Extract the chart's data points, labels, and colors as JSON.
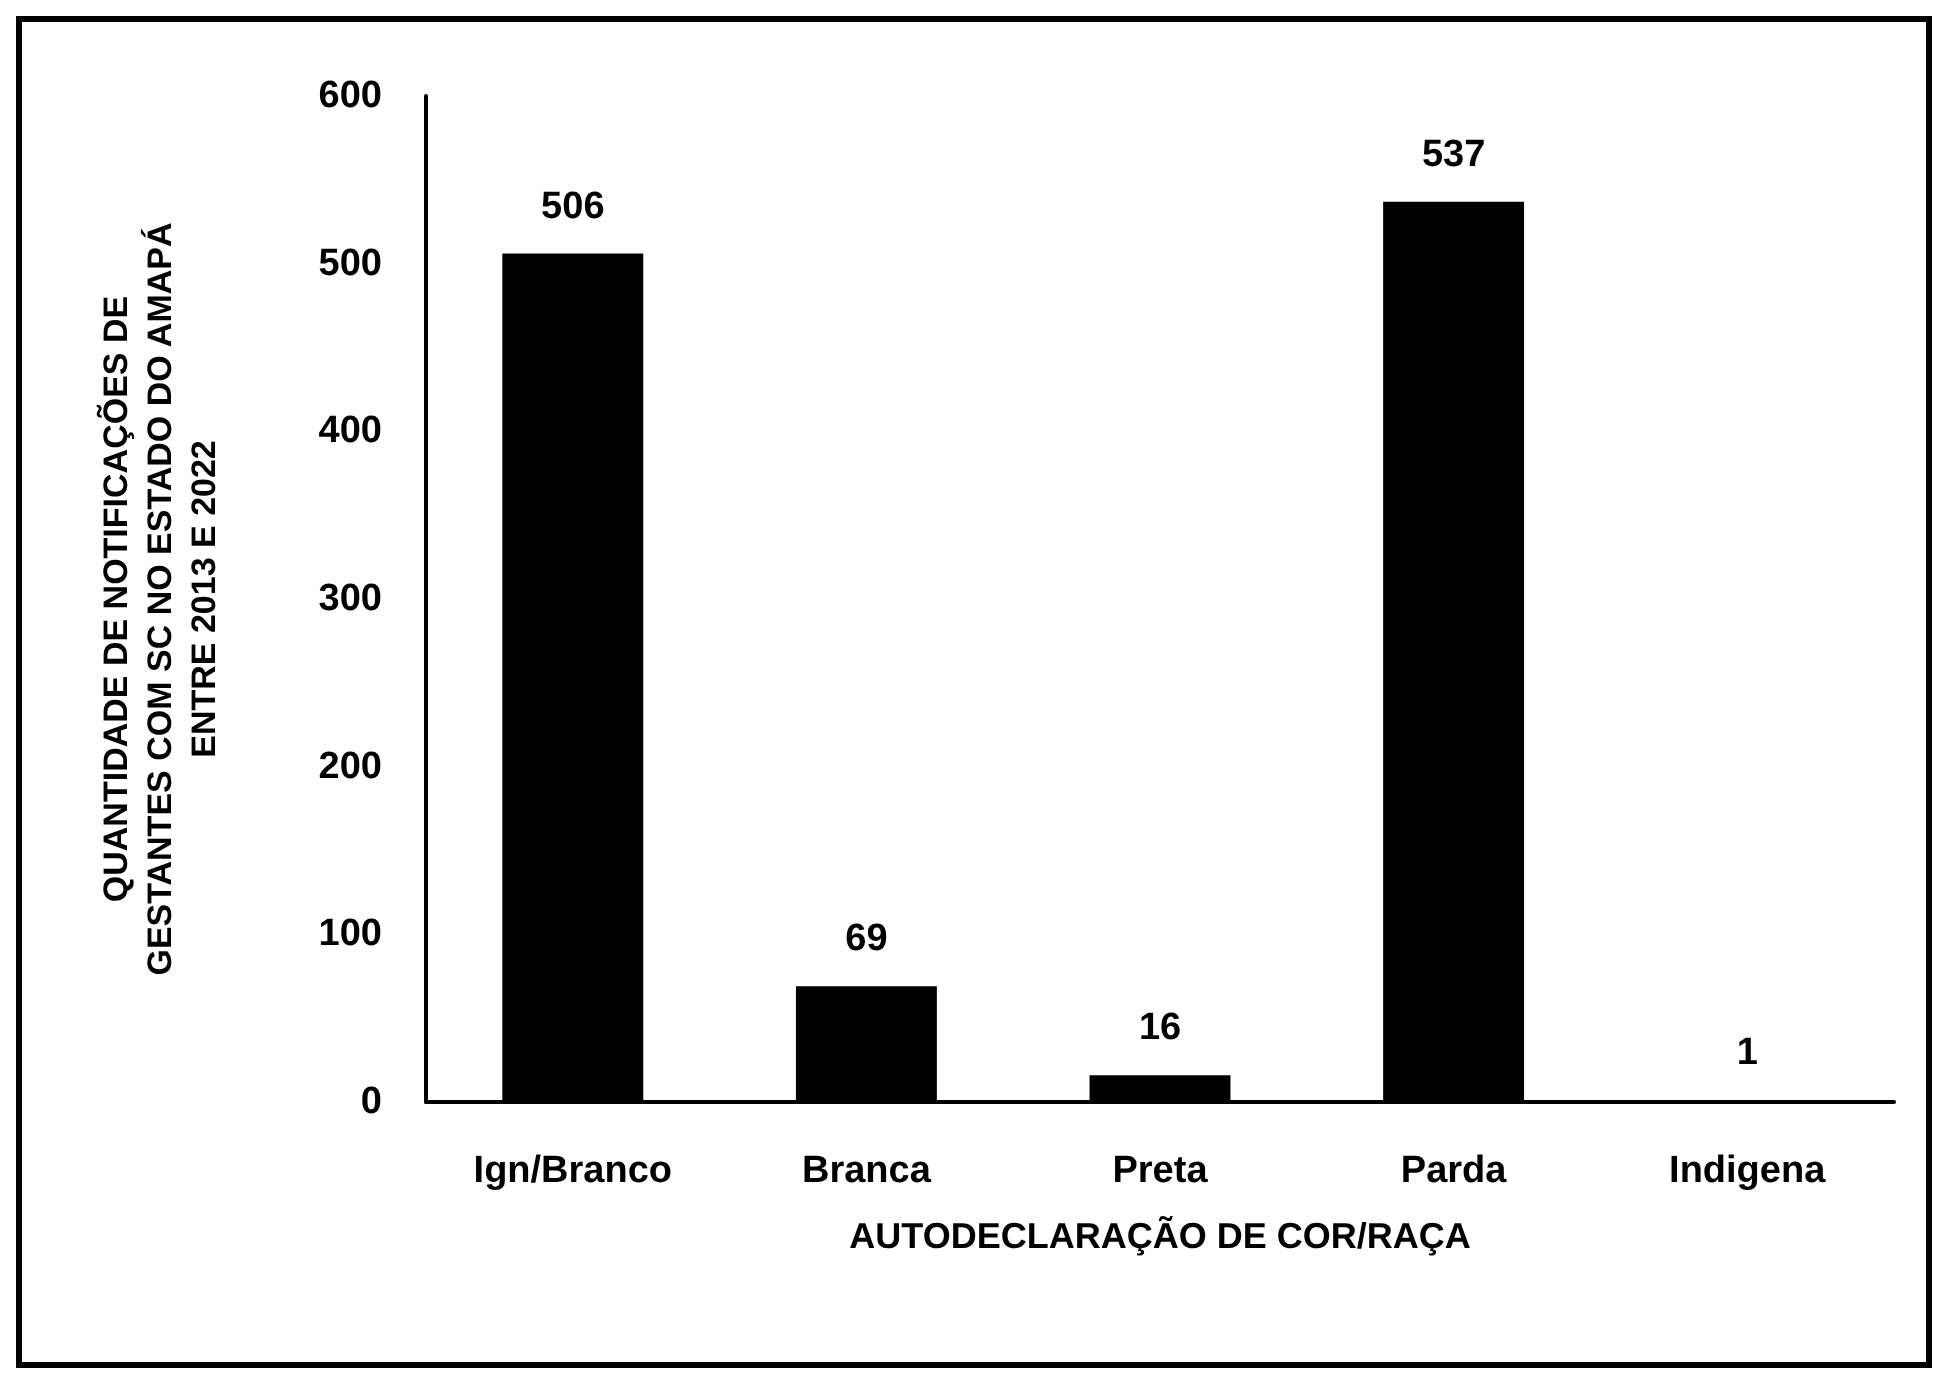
{
  "chart_data": {
    "type": "bar",
    "xlabel": "AUTODECLARAÇÃO DE COR/RAÇA",
    "ylabel": "QUANTIDADE DE NOTIFICAÇÕES DE GESTANTES COM SC NO ESTADO DO AMAPÁ ENTRE 2013 E 2022",
    "categories": [
      "Ign/Branco",
      "Branca",
      "Preta",
      "Parda",
      "Indigena"
    ],
    "values": [
      506,
      69,
      16,
      537,
      1
    ],
    "color": "#000000",
    "ylim": [
      0,
      600
    ],
    "yticks": [
      0,
      100,
      200,
      300,
      400,
      500,
      600
    ],
    "grid": false,
    "data_labels": true
  }
}
